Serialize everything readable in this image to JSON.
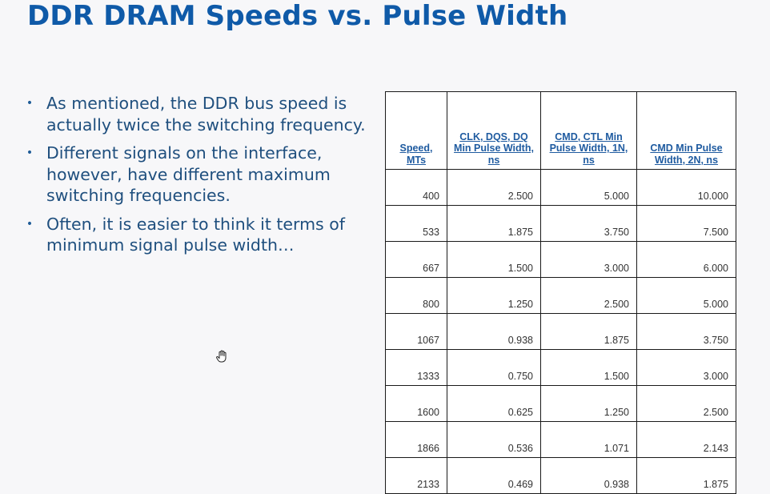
{
  "slide": {
    "title": "DDR DRAM Speeds vs. Pulse Width",
    "bullets": [
      "As mentioned, the DDR bus speed is actually twice the switching frequency.",
      "Different signals on the interface, however, have different maximum switching frequencies.",
      "Often, it is easier to think it terms of minimum signal pulse width…"
    ],
    "bullet_glyph": "•"
  },
  "table": {
    "headers": [
      "Speed, MTs",
      "CLK, DQS, DQ Min Pulse Width, ns",
      "CMD, CTL Min Pulse Width, 1N, ns",
      "CMD Min Pulse Width, 2N, ns"
    ],
    "rows": [
      [
        "400",
        "2.500",
        "5.000",
        "10.000"
      ],
      [
        "533",
        "1.875",
        "3.750",
        "7.500"
      ],
      [
        "667",
        "1.500",
        "3.000",
        "6.000"
      ],
      [
        "800",
        "1.250",
        "2.500",
        "5.000"
      ],
      [
        "1067",
        "0.938",
        "1.875",
        "3.750"
      ],
      [
        "1333",
        "0.750",
        "1.500",
        "3.000"
      ],
      [
        "1600",
        "0.625",
        "1.250",
        "2.500"
      ],
      [
        "1866",
        "0.536",
        "1.071",
        "2.143"
      ],
      [
        "2133",
        "0.469",
        "0.938",
        "1.875"
      ]
    ]
  },
  "colors": {
    "title": "#0f5aa8",
    "bullet_text": "#1f4f7e",
    "header_text": "#1f5ba0",
    "cell_text": "#333333",
    "border": "#1a1a1a",
    "background": "#f7f7f9"
  },
  "cursor": {
    "icon": "hand-cursor-icon"
  }
}
